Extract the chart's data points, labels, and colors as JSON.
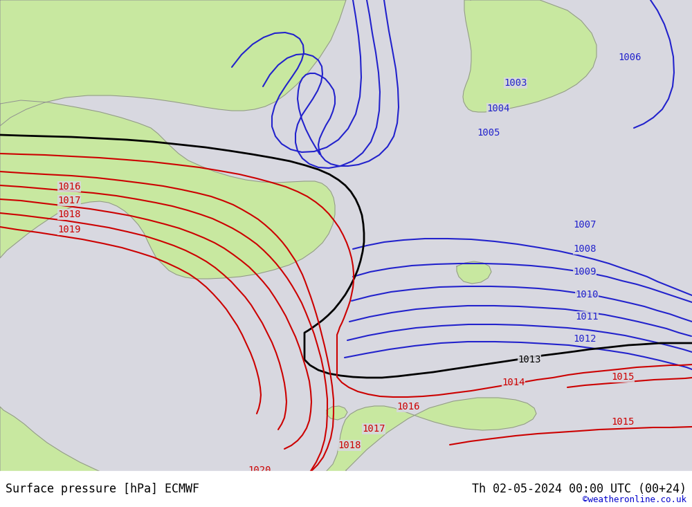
{
  "title_left": "Surface pressure [hPa] ECMWF",
  "title_right": "Th 02-05-2024 00:00 UTC (00+24)",
  "watermark": "©weatheronline.co.uk",
  "bg_sea_color": "#d8d8e0",
  "land_color": "#c8e8a0",
  "land_border_color": "#909090",
  "white_strip_color": "#ffffff",
  "isobar_blue": "#2222cc",
  "isobar_red": "#cc0000",
  "isobar_black": "#000000",
  "font_size_label": 10,
  "font_size_title": 12,
  "font_size_watermark": 9,
  "label_bg": "#d8d8e0"
}
